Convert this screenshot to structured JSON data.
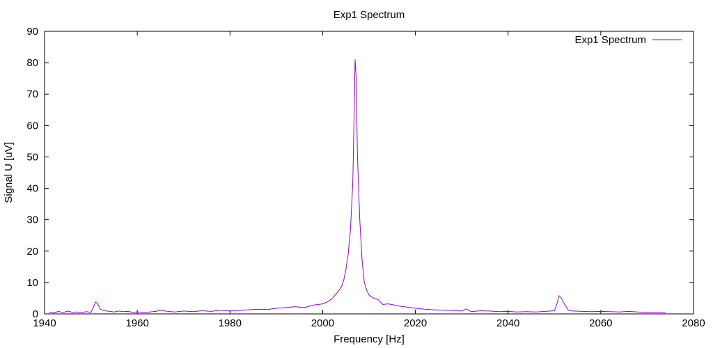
{
  "chart_data": {
    "type": "line",
    "title": "Exp1 Spectrum",
    "xlabel": "Frequency [Hz]",
    "ylabel": "Signal U [uV]",
    "xlim": [
      1940,
      2080
    ],
    "ylim": [
      0,
      90
    ],
    "xticks": [
      "1940",
      "1960",
      "1980",
      "2000",
      "2020",
      "2040",
      "2060",
      "2080"
    ],
    "yticks": [
      "0",
      "10",
      "20",
      "30",
      "40",
      "50",
      "60",
      "70",
      "80",
      "90"
    ],
    "grid": false,
    "legend": "top-right",
    "series": [
      {
        "name": "Exp1 Spectrum",
        "color": "#9400d3",
        "x": [
          1941,
          1942,
          1943,
          1944,
          1945,
          1946,
          1947,
          1948,
          1949,
          1950,
          1950.5,
          1951,
          1951.5,
          1952,
          1953,
          1954,
          1955,
          1956,
          1957,
          1958,
          1959,
          1960,
          1962,
          1964,
          1965,
          1966,
          1968,
          1970,
          1972,
          1974,
          1976,
          1978,
          1980,
          1982,
          1984,
          1986,
          1988,
          1990,
          1992,
          1994,
          1996,
          1998,
          2000,
          2001,
          2002,
          2003,
          2004,
          2004.5,
          2005,
          2005.5,
          2006,
          2006.5,
          2006.8,
          2007,
          2007.2,
          2007.5,
          2008,
          2008.5,
          2009,
          2009.5,
          2010,
          2011,
          2012,
          2013,
          2014,
          2015,
          2016,
          2018,
          2020,
          2022,
          2024,
          2026,
          2028,
          2030,
          2031,
          2032,
          2034,
          2036,
          2038,
          2040,
          2042,
          2044,
          2046,
          2048,
          2050,
          2050.5,
          2051,
          2051.5,
          2052,
          2053,
          2054,
          2056,
          2058,
          2060,
          2062,
          2064,
          2066,
          2068,
          2070,
          2072,
          2074
        ],
        "values": [
          0.5,
          0.3,
          0.8,
          0.4,
          0.9,
          0.5,
          0.6,
          0.4,
          0.7,
          0.5,
          2.0,
          3.8,
          3.2,
          1.5,
          1.0,
          0.8,
          0.6,
          0.9,
          0.7,
          0.8,
          0.5,
          0.6,
          0.5,
          0.8,
          1.2,
          0.9,
          0.6,
          0.9,
          0.7,
          1.0,
          0.8,
          1.2,
          0.9,
          1.1,
          1.3,
          1.5,
          1.4,
          1.8,
          2.0,
          2.3,
          2.0,
          2.8,
          3.2,
          3.8,
          4.8,
          6.5,
          8.5,
          10.5,
          14.0,
          19.0,
          27.0,
          42.0,
          65.0,
          81.0,
          76.0,
          50.0,
          30.0,
          17.0,
          10.0,
          7.5,
          6.0,
          5.0,
          4.5,
          3.0,
          3.2,
          3.0,
          2.6,
          2.2,
          1.8,
          1.5,
          1.3,
          1.2,
          1.1,
          0.9,
          1.6,
          0.7,
          1.0,
          0.9,
          0.7,
          0.8,
          0.6,
          0.7,
          0.6,
          0.8,
          1.0,
          3.0,
          5.8,
          5.0,
          3.5,
          1.2,
          0.9,
          0.8,
          0.7,
          0.8,
          0.7,
          0.6,
          0.8,
          0.6,
          0.5,
          0.4,
          0.5
        ]
      }
    ]
  }
}
